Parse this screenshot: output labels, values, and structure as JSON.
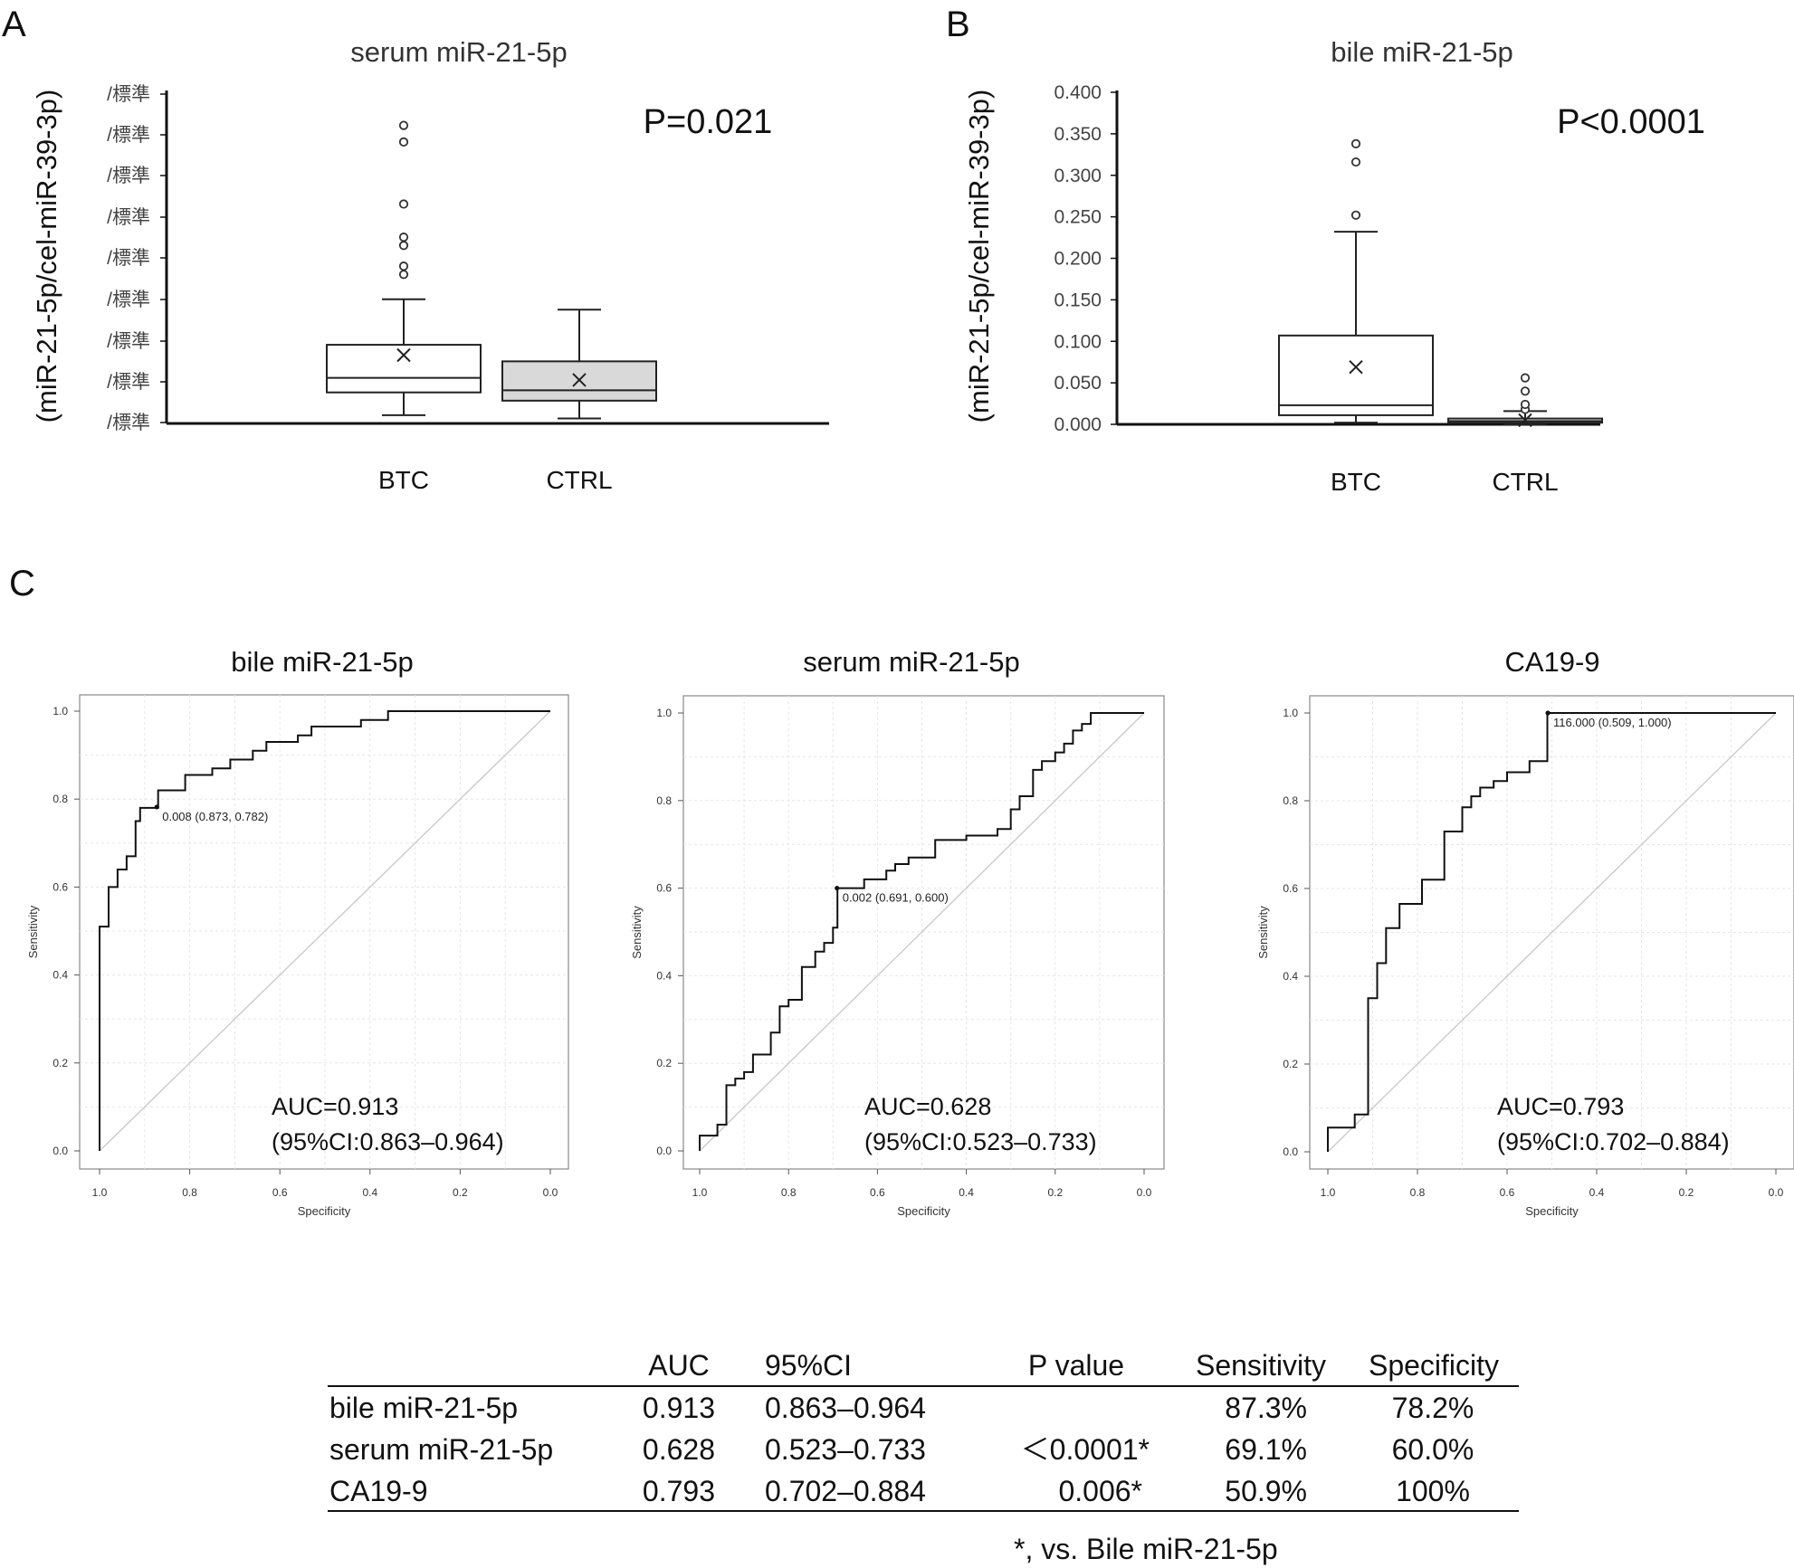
{
  "panel_labels": {
    "a": "A",
    "b": "B",
    "c": "C"
  },
  "chart_data": [
    {
      "type": "box",
      "title": "serum miR-21-5p",
      "ylabel": "(miR-21-5p/cel-miR-39-3p)",
      "y_tick_labels": [
        "/標準",
        "/標準",
        "/標準",
        "/標準",
        "/標準",
        "/標準",
        "/標準",
        "/標準",
        "/標準"
      ],
      "ylim": [
        0,
        8
      ],
      "p_text": "P=0.021",
      "groups": [
        {
          "name": "BTC",
          "whisker_low": 0.2,
          "q1": 0.75,
          "median": 1.1,
          "q3": 1.9,
          "whisker_high": 3.0,
          "mean": 1.65,
          "outliers": [
            3.6,
            3.8,
            4.3,
            4.5,
            5.3,
            6.8,
            7.2
          ],
          "fill": "#ffffff"
        },
        {
          "name": "CTRL",
          "whisker_low": 0.12,
          "q1": 0.55,
          "median": 0.8,
          "q3": 1.5,
          "whisker_high": 2.75,
          "mean": 1.05,
          "outliers": [],
          "fill": "#d9d9d9"
        }
      ]
    },
    {
      "type": "box",
      "title": "bile miR-21-5p",
      "ylabel": "(miR-21-5p/cel-miR-39-3p)",
      "y_tick_labels": [
        "0.000",
        "0.050",
        "0.100",
        "0.150",
        "0.200",
        "0.250",
        "0.300",
        "0.350",
        "0.400"
      ],
      "ylim": [
        0,
        0.4
      ],
      "p_text": "P<0.0001",
      "groups": [
        {
          "name": "BTC",
          "whisker_low": 0.002,
          "q1": 0.011,
          "median": 0.023,
          "q3": 0.107,
          "whisker_high": 0.232,
          "mean": 0.069,
          "outliers": [
            0.252,
            0.316,
            0.338
          ],
          "fill": "#ffffff"
        },
        {
          "name": "CTRL",
          "whisker_low": 0.0,
          "q1": 0.002,
          "median": 0.004,
          "q3": 0.007,
          "whisker_high": 0.016,
          "mean": 0.005,
          "outliers": [
            0.018,
            0.024,
            0.04,
            0.056
          ],
          "fill": "#ffffff"
        }
      ]
    },
    {
      "type": "line",
      "title": "bile miR-21-5p",
      "xlabel": "Specificity",
      "ylabel": "Sensitivity",
      "x_ticks": [
        "1.0",
        "0.8",
        "0.6",
        "0.4",
        "0.2",
        "0.0"
      ],
      "y_ticks": [
        "0.0",
        "0.2",
        "0.4",
        "0.6",
        "0.8",
        "1.0"
      ],
      "xlim": [
        1.0,
        0.0
      ],
      "ylim": [
        0.0,
        1.0
      ],
      "cutoff_label": "0.008 (0.873, 0.782)",
      "cutoff_point": [
        0.873,
        0.782
      ],
      "auc_text": "AUC=0.913",
      "ci_text": "(95%CI:0.863–0.964)",
      "roc": [
        [
          1.0,
          0.0
        ],
        [
          1.0,
          0.51
        ],
        [
          0.98,
          0.51
        ],
        [
          0.98,
          0.6
        ],
        [
          0.96,
          0.6
        ],
        [
          0.96,
          0.64
        ],
        [
          0.94,
          0.64
        ],
        [
          0.94,
          0.67
        ],
        [
          0.92,
          0.67
        ],
        [
          0.92,
          0.75
        ],
        [
          0.91,
          0.75
        ],
        [
          0.91,
          0.78
        ],
        [
          0.87,
          0.78
        ],
        [
          0.87,
          0.82
        ],
        [
          0.81,
          0.82
        ],
        [
          0.81,
          0.855
        ],
        [
          0.75,
          0.855
        ],
        [
          0.75,
          0.87
        ],
        [
          0.71,
          0.87
        ],
        [
          0.71,
          0.89
        ],
        [
          0.66,
          0.89
        ],
        [
          0.66,
          0.91
        ],
        [
          0.63,
          0.91
        ],
        [
          0.63,
          0.93
        ],
        [
          0.56,
          0.93
        ],
        [
          0.56,
          0.945
        ],
        [
          0.53,
          0.945
        ],
        [
          0.53,
          0.965
        ],
        [
          0.42,
          0.965
        ],
        [
          0.42,
          0.98
        ],
        [
          0.36,
          0.98
        ],
        [
          0.36,
          1.0
        ],
        [
          0.0,
          1.0
        ]
      ]
    },
    {
      "type": "line",
      "title": "serum miR-21-5p",
      "xlabel": "Specificity",
      "ylabel": "Sensitivity",
      "x_ticks": [
        "1.0",
        "0.8",
        "0.6",
        "0.4",
        "0.2",
        "0.0"
      ],
      "y_ticks": [
        "0.0",
        "0.2",
        "0.4",
        "0.6",
        "0.8",
        "1.0"
      ],
      "xlim": [
        1.0,
        0.0
      ],
      "ylim": [
        0.0,
        1.0
      ],
      "cutoff_label": "0.002 (0.691, 0.600)",
      "cutoff_point": [
        0.691,
        0.6
      ],
      "auc_text": "AUC=0.628",
      "ci_text": "(95%CI:0.523–0.733)",
      "roc": [
        [
          1.0,
          0.0
        ],
        [
          1.0,
          0.035
        ],
        [
          0.96,
          0.035
        ],
        [
          0.96,
          0.06
        ],
        [
          0.94,
          0.06
        ],
        [
          0.94,
          0.15
        ],
        [
          0.92,
          0.15
        ],
        [
          0.92,
          0.165
        ],
        [
          0.9,
          0.165
        ],
        [
          0.9,
          0.18
        ],
        [
          0.88,
          0.18
        ],
        [
          0.88,
          0.22
        ],
        [
          0.84,
          0.22
        ],
        [
          0.84,
          0.27
        ],
        [
          0.82,
          0.27
        ],
        [
          0.82,
          0.33
        ],
        [
          0.8,
          0.33
        ],
        [
          0.8,
          0.345
        ],
        [
          0.77,
          0.345
        ],
        [
          0.77,
          0.42
        ],
        [
          0.74,
          0.42
        ],
        [
          0.74,
          0.455
        ],
        [
          0.72,
          0.455
        ],
        [
          0.72,
          0.475
        ],
        [
          0.7,
          0.475
        ],
        [
          0.7,
          0.51
        ],
        [
          0.69,
          0.51
        ],
        [
          0.69,
          0.6
        ],
        [
          0.63,
          0.6
        ],
        [
          0.63,
          0.62
        ],
        [
          0.58,
          0.62
        ],
        [
          0.58,
          0.64
        ],
        [
          0.56,
          0.64
        ],
        [
          0.56,
          0.655
        ],
        [
          0.53,
          0.655
        ],
        [
          0.53,
          0.67
        ],
        [
          0.47,
          0.67
        ],
        [
          0.47,
          0.71
        ],
        [
          0.4,
          0.71
        ],
        [
          0.4,
          0.72
        ],
        [
          0.33,
          0.72
        ],
        [
          0.33,
          0.735
        ],
        [
          0.3,
          0.735
        ],
        [
          0.3,
          0.78
        ],
        [
          0.28,
          0.78
        ],
        [
          0.28,
          0.81
        ],
        [
          0.25,
          0.81
        ],
        [
          0.25,
          0.87
        ],
        [
          0.23,
          0.87
        ],
        [
          0.23,
          0.89
        ],
        [
          0.2,
          0.89
        ],
        [
          0.2,
          0.91
        ],
        [
          0.18,
          0.91
        ],
        [
          0.18,
          0.93
        ],
        [
          0.16,
          0.93
        ],
        [
          0.16,
          0.96
        ],
        [
          0.14,
          0.96
        ],
        [
          0.14,
          0.975
        ],
        [
          0.12,
          0.975
        ],
        [
          0.12,
          1.0
        ],
        [
          0.0,
          1.0
        ]
      ]
    },
    {
      "type": "line",
      "title": "CA19-9",
      "xlabel": "Specificity",
      "ylabel": "Sensitivity",
      "x_ticks": [
        "1.0",
        "0.8",
        "0.6",
        "0.4",
        "0.2",
        "0.0"
      ],
      "y_ticks": [
        "0.0",
        "0.2",
        "0.4",
        "0.6",
        "0.8",
        "1.0"
      ],
      "xlim": [
        1.0,
        0.0
      ],
      "ylim": [
        0.0,
        1.0
      ],
      "cutoff_label": "116.000 (0.509, 1.000)",
      "cutoff_point": [
        0.509,
        1.0
      ],
      "auc_text": "AUC=0.793",
      "ci_text": "(95%CI:0.702–0.884)",
      "roc": [
        [
          1.0,
          0.0
        ],
        [
          1.0,
          0.055
        ],
        [
          0.94,
          0.055
        ],
        [
          0.94,
          0.085
        ],
        [
          0.91,
          0.085
        ],
        [
          0.91,
          0.35
        ],
        [
          0.89,
          0.35
        ],
        [
          0.89,
          0.43
        ],
        [
          0.87,
          0.43
        ],
        [
          0.87,
          0.51
        ],
        [
          0.84,
          0.51
        ],
        [
          0.84,
          0.565
        ],
        [
          0.79,
          0.565
        ],
        [
          0.79,
          0.62
        ],
        [
          0.74,
          0.62
        ],
        [
          0.74,
          0.73
        ],
        [
          0.7,
          0.73
        ],
        [
          0.7,
          0.785
        ],
        [
          0.68,
          0.785
        ],
        [
          0.68,
          0.81
        ],
        [
          0.66,
          0.81
        ],
        [
          0.66,
          0.83
        ],
        [
          0.63,
          0.83
        ],
        [
          0.63,
          0.845
        ],
        [
          0.6,
          0.845
        ],
        [
          0.6,
          0.865
        ],
        [
          0.55,
          0.865
        ],
        [
          0.55,
          0.89
        ],
        [
          0.51,
          0.89
        ],
        [
          0.51,
          1.0
        ],
        [
          0.0,
          1.0
        ]
      ]
    }
  ],
  "table": {
    "headers": [
      "",
      "AUC",
      "95%CI",
      "P value",
      "Sensitivity",
      "Specificity"
    ],
    "rows": [
      [
        "bile miR-21-5p",
        "0.913",
        "0.863–0.964",
        "",
        "87.3%",
        "78.2%"
      ],
      [
        "serum miR-21-5p",
        "0.628",
        "0.523–0.733",
        "＜0.0001*",
        "69.1%",
        "60.0%"
      ],
      [
        "CA19-9",
        "0.793",
        "0.702–0.884",
        "0.006*",
        "50.9%",
        "100%"
      ]
    ],
    "footnote": "*, vs. Bile miR-21-5p"
  }
}
